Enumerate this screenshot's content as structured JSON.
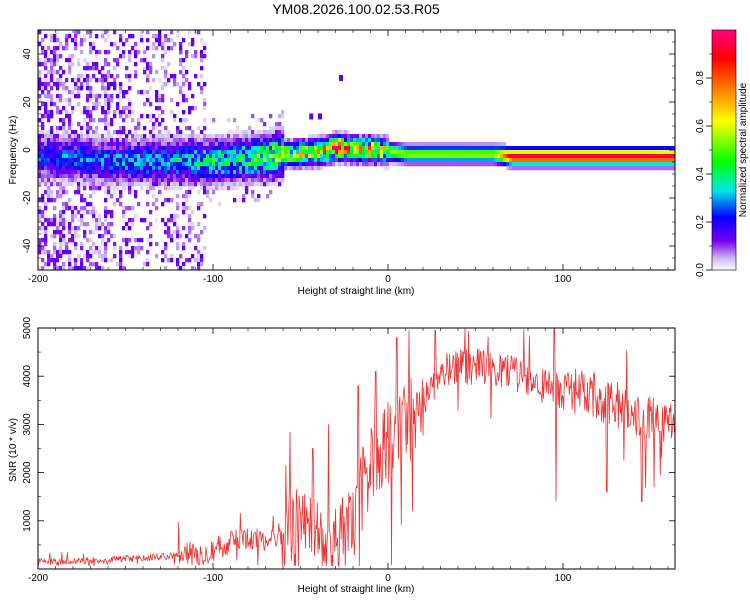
{
  "title": "YM08.2026.100.02.53.R05",
  "chart_data": [
    {
      "type": "heatmap",
      "title": "YM08.2026.100.02.53.R05",
      "xlabel": "Height of straight line (km)",
      "ylabel": "Frequency (Hz)",
      "xlim": [
        -200,
        164
      ],
      "ylim": [
        -50,
        50
      ],
      "xticks": [
        -200,
        -100,
        0,
        100
      ],
      "xtick_labels": [
        "-200",
        "-100",
        "0",
        "100"
      ],
      "yticks": [
        -40,
        -20,
        0,
        20,
        40
      ],
      "ytick_labels": [
        "-40",
        "-20",
        "0",
        "20",
        "40"
      ],
      "colorbar": {
        "label": "Normalized spectral amplitude",
        "range": [
          0,
          1
        ],
        "ticks": [
          0.0,
          0.2,
          0.4,
          0.6,
          0.8
        ],
        "tick_labels": [
          "0.0",
          "0.2",
          "0.4",
          "0.6",
          "0.8"
        ],
        "colormap": [
          "#ffffff",
          "#c9b6ef",
          "#7a00ee",
          "#0000ff",
          "#00e8e8",
          "#00ff00",
          "#ffff00",
          "#ff8000",
          "#ff0000",
          "#ff0080"
        ]
      },
      "spectral_band": {
        "description": "centre frequency and peak normalized amplitude vs height",
        "x": [
          -200,
          -160,
          -120,
          -100,
          -80,
          -60,
          -40,
          -30,
          -20,
          -10,
          0,
          10,
          20,
          40,
          60,
          70,
          90,
          100,
          120,
          164
        ],
        "center_freq": [
          -2,
          -4,
          -4,
          -4,
          -3,
          -1,
          0,
          2,
          1,
          1,
          0,
          -1,
          -1,
          -1,
          -1,
          -2,
          -2,
          -2,
          -2,
          -2
        ],
        "peak_amplitude": [
          0.22,
          0.25,
          0.3,
          0.35,
          0.4,
          0.5,
          0.6,
          0.85,
          0.6,
          0.6,
          0.55,
          0.55,
          0.55,
          0.55,
          0.55,
          0.95,
          0.95,
          0.95,
          0.95,
          0.95
        ]
      }
    },
    {
      "type": "line",
      "xlabel": "Height of straight line (km)",
      "ylabel": "SNR (10 * v/v)",
      "xlim": [
        -200,
        164
      ],
      "ylim": [
        0,
        5000
      ],
      "xticks": [
        -200,
        -100,
        0,
        100
      ],
      "xtick_labels": [
        "-200",
        "-100",
        "0",
        "100"
      ],
      "yticks": [
        1000,
        2000,
        3000,
        4000,
        5000
      ],
      "ytick_labels": [
        "1000",
        "2000",
        "3000",
        "4000",
        "5000"
      ],
      "series": [
        {
          "name": "SNR",
          "color": "#ee3333",
          "x": [
            -200,
            -180,
            -160,
            -140,
            -120,
            -110,
            -100,
            -90,
            -80,
            -70,
            -60,
            -50,
            -45,
            -40,
            -35,
            -30,
            -25,
            -20,
            -15,
            -10,
            -5,
            0,
            5,
            10,
            15,
            20,
            25,
            30,
            40,
            50,
            60,
            70,
            80,
            90,
            100,
            110,
            120,
            130,
            140,
            150,
            164
          ],
          "y": [
            150,
            160,
            200,
            230,
            280,
            320,
            400,
            550,
            600,
            650,
            700,
            900,
            1200,
            700,
            600,
            550,
            600,
            900,
            1600,
            2200,
            2500,
            2600,
            2800,
            3000,
            3200,
            3500,
            3800,
            4100,
            4200,
            4200,
            4150,
            4050,
            3950,
            3750,
            3700,
            3650,
            3550,
            3400,
            3250,
            3150,
            3050
          ],
          "spikes": [
            {
              "x": -43,
              "y": 2500
            },
            {
              "x": -34,
              "y": 3000
            },
            {
              "x": -17,
              "y": 3800
            },
            {
              "x": -7,
              "y": 4100
            },
            {
              "x": 5,
              "y": 4800
            },
            {
              "x": 12,
              "y": 4950
            },
            {
              "x": 14,
              "y": 1200
            },
            {
              "x": 27,
              "y": 4950
            },
            {
              "x": 44,
              "y": 5000
            },
            {
              "x": 95,
              "y": 5000
            },
            {
              "x": 96,
              "y": 1400
            },
            {
              "x": 125,
              "y": 1600
            },
            {
              "x": 145,
              "y": 1400
            },
            {
              "x": 152,
              "y": 1700
            }
          ]
        }
      ]
    }
  ]
}
